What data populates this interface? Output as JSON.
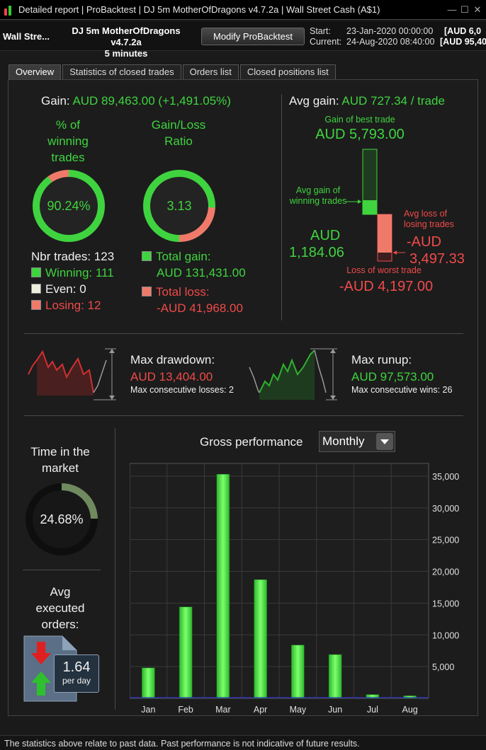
{
  "window": {
    "title_parts": [
      "Detailed report",
      "ProBacktest",
      "DJ 5m MotherOfDragons v4.7.2a",
      "Wall Street Cash (A$1)"
    ],
    "minimize": "—",
    "maximize": "☐",
    "close": "✕"
  },
  "header": {
    "instrument": "Wall Stre...",
    "strategy_name": "DJ 5m MotherOfDragons v4.7.2a",
    "timeframe": "5 minutes",
    "modify_button": "Modify ProBacktest",
    "start_label": "Start:",
    "start_date": "23-Jan-2020 00:00:00",
    "start_value": "[AUD 6,0",
    "current_label": "Current:",
    "current_date": "24-Aug-2020 08:40:00",
    "current_value": "[AUD 95,40"
  },
  "tabs": [
    "Overview",
    "Statistics of closed trades",
    "Orders list",
    "Closed positions list"
  ],
  "overview": {
    "gain_label": "Gain:",
    "gain_value": "AUD 89,463.00 (+1,491.05%)",
    "pct_winning_label": [
      "% of",
      "winning",
      "trades"
    ],
    "pct_winning_value": "90.24%",
    "pct_winning_fraction": 0.9024,
    "ratio_label": [
      "Gain/Loss",
      "Ratio"
    ],
    "ratio_value": "3.13",
    "ratio_green_fraction": 0.758,
    "nbr_trades": "Nbr trades: 123",
    "winning": "Winning: 111",
    "even": "Even: 0",
    "losing": "Losing: 12",
    "total_gain_label": "Total gain:",
    "total_gain_value": "AUD 131,431.00",
    "total_loss_label": "Total loss:",
    "total_loss_value": "-AUD 41,968.00",
    "avg_gain_label": "Avg gain:",
    "avg_gain_value": "AUD 727.34 / trade",
    "best_trade_label": "Gain of best trade",
    "best_trade_value": "AUD 5,793.00",
    "avg_win_label": [
      "Avg gain of",
      "winning trades"
    ],
    "avg_win_value": [
      "AUD",
      "1,184.06"
    ],
    "avg_loss_label": [
      "Avg loss of",
      "losing trades"
    ],
    "avg_loss_value": [
      "-AUD",
      "3,497.33"
    ],
    "worst_trade_label": "Loss of worst trade",
    "worst_trade_value": "-AUD 4,197.00",
    "drawdown_label": "Max drawdown:",
    "drawdown_value": "AUD 13,404.00",
    "consec_losses": "Max consecutive losses: 2",
    "runup_label": "Max runup:",
    "runup_value": "AUD 97,573.00",
    "consec_wins": "Max consecutive wins: 26",
    "time_market_label": [
      "Time in the",
      "market"
    ],
    "time_market_value": "24.68%",
    "time_market_fraction": 0.2468,
    "avg_orders_label": [
      "Avg",
      "executed",
      "orders:"
    ],
    "avg_orders_value": "1.64",
    "avg_orders_unit": "per day",
    "gross_perf_label": "Gross performance",
    "period_select": "Monthly"
  },
  "colors": {
    "green": "#3fd43f",
    "red": "#f04a4a",
    "background": "#1c1c1c"
  },
  "chart_data": {
    "type": "bar",
    "categories": [
      "Jan",
      "Feb",
      "Mar",
      "Apr",
      "May",
      "Jun",
      "Jul",
      "Aug"
    ],
    "values": [
      4800,
      14400,
      35300,
      18700,
      8400,
      6900,
      600,
      400
    ],
    "ylim": [
      0,
      37000
    ],
    "yticks": [
      5000,
      10000,
      15000,
      20000,
      25000,
      30000,
      35000
    ],
    "ytick_labels": [
      "5,000",
      "10,000",
      "15,000",
      "20,000",
      "25,000",
      "30,000",
      "35,000"
    ],
    "grid": true,
    "xlabel": "",
    "ylabel": ""
  },
  "footer": "The statistics above relate to past data. Past performance is not indicative of future results."
}
